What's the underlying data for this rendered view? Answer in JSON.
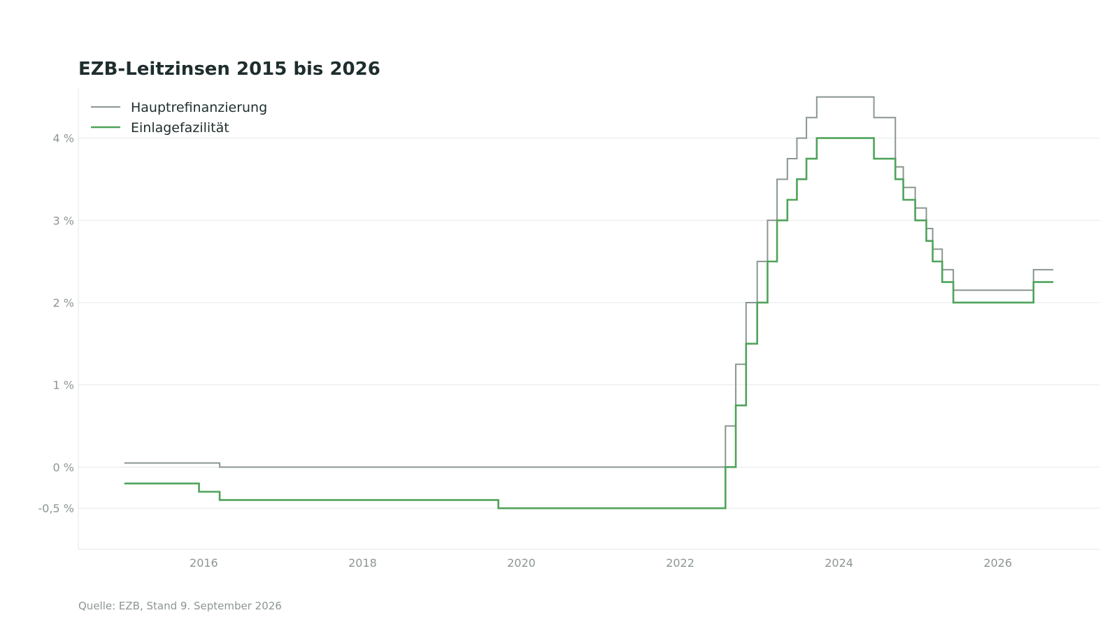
{
  "chart_data": {
    "type": "line",
    "title": "EZB-Leitzinsen 2015 bis 2026",
    "source": "Quelle: EZB, Stand 9. September 2026",
    "step": true,
    "xlim": [
      2014.42,
      2027.28
    ],
    "ylim": [
      -1.0,
      4.6
    ],
    "x_ticks": [
      {
        "value": 2016,
        "label": "2016"
      },
      {
        "value": 2018,
        "label": "2018"
      },
      {
        "value": 2020,
        "label": "2020"
      },
      {
        "value": 2022,
        "label": "2022"
      },
      {
        "value": 2024,
        "label": "2024"
      },
      {
        "value": 2026,
        "label": "2026"
      }
    ],
    "y_ticks": [
      {
        "value": -0.5,
        "label": "-0,5 %"
      },
      {
        "value": 0,
        "label": "0 %"
      },
      {
        "value": 1,
        "label": "1 %"
      },
      {
        "value": 2,
        "label": "2 %"
      },
      {
        "value": 3,
        "label": "3 %"
      },
      {
        "value": 4,
        "label": "4 %"
      }
    ],
    "grid": true,
    "legend_position": "top-left",
    "series": [
      {
        "name": "Hauptrefinanzierung",
        "color": "#8a9691",
        "x": [
          2015.0,
          2016.2,
          2022.57,
          2022.7,
          2022.83,
          2022.97,
          2023.1,
          2023.22,
          2023.35,
          2023.47,
          2023.59,
          2023.72,
          2024.44,
          2024.71,
          2024.81,
          2024.96,
          2025.1,
          2025.18,
          2025.3,
          2025.44,
          2026.45,
          2026.7
        ],
        "y": [
          0.05,
          0.0,
          0.5,
          1.25,
          2.0,
          2.5,
          3.0,
          3.5,
          3.75,
          4.0,
          4.25,
          4.5,
          4.25,
          3.65,
          3.4,
          3.15,
          2.9,
          2.65,
          2.4,
          2.15,
          2.4,
          2.4
        ]
      },
      {
        "name": "Einlagefazilität",
        "color": "#4fa35a",
        "x": [
          2015.0,
          2015.94,
          2016.2,
          2019.71,
          2022.57,
          2022.7,
          2022.83,
          2022.97,
          2023.1,
          2023.22,
          2023.35,
          2023.47,
          2023.59,
          2023.72,
          2024.44,
          2024.71,
          2024.81,
          2024.96,
          2025.1,
          2025.18,
          2025.3,
          2025.44,
          2026.45,
          2026.7
        ],
        "y": [
          -0.2,
          -0.3,
          -0.4,
          -0.5,
          0.0,
          0.75,
          1.5,
          2.0,
          2.5,
          3.0,
          3.25,
          3.5,
          3.75,
          4.0,
          3.75,
          3.5,
          3.25,
          3.0,
          2.75,
          2.5,
          2.25,
          2.0,
          2.25,
          2.25
        ]
      }
    ]
  }
}
